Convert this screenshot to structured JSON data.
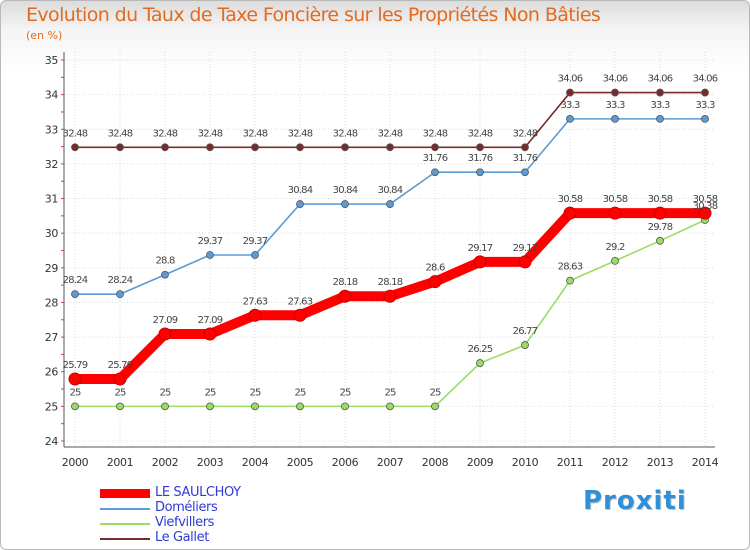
{
  "chart_data": {
    "type": "line",
    "title": "Evolution du Taux de Taxe Foncière sur les Propriétés Non Bâties",
    "subtitle": "(en %)",
    "x": [
      "2000",
      "2001",
      "2002",
      "2003",
      "2004",
      "2005",
      "2006",
      "2007",
      "2008",
      "2009",
      "2010",
      "2011",
      "2012",
      "2013",
      "2014"
    ],
    "ylim": [
      24,
      35
    ],
    "yticks": [
      "24",
      "25",
      "26",
      "27",
      "28",
      "29",
      "30",
      "31",
      "32",
      "33",
      "34",
      "35"
    ],
    "grid": true,
    "legend_position": "bottom-left",
    "series": [
      {
        "name": "LE SAULCHOY",
        "color": "#ff0000",
        "values": [
          25.79,
          25.79,
          27.09,
          27.09,
          27.63,
          27.63,
          28.18,
          28.18,
          28.6,
          29.17,
          29.17,
          30.58,
          30.58,
          30.58,
          30.58
        ],
        "labels": [
          "25.79",
          "25.79",
          "27.09",
          "27.09",
          "27.63",
          "27.63",
          "28.18",
          "28.18",
          "28.6",
          "29.17",
          "29.17",
          "30.58",
          "30.58",
          "30.58",
          "30.58"
        ]
      },
      {
        "name": "Doméliers",
        "color": "#5b9bd5",
        "values": [
          28.24,
          28.24,
          28.8,
          29.37,
          29.37,
          30.84,
          30.84,
          30.84,
          31.76,
          31.76,
          31.76,
          33.3,
          33.3,
          33.3,
          33.3
        ],
        "labels": [
          "28.24",
          "28.24",
          "28.8",
          "29.37",
          "29.37",
          "30.84",
          "30.84",
          "30.84",
          "31.76",
          "31.76",
          "31.76",
          "33.3",
          "33.3",
          "33.3",
          "33.3"
        ]
      },
      {
        "name": "Viefvillers",
        "color": "#99dd66",
        "values": [
          25,
          25,
          25,
          25,
          25,
          25,
          25,
          25,
          25,
          26.25,
          26.77,
          28.63,
          29.2,
          29.78,
          30.38
        ],
        "labels": [
          "25",
          "25",
          "25",
          "25",
          "25",
          "25",
          "25",
          "25",
          "25",
          "26.25",
          "26.77",
          "28.63",
          "29.2",
          "29.78",
          "30.38"
        ]
      },
      {
        "name": "Le Gallet",
        "color": "#7a2a2a",
        "values": [
          32.48,
          32.48,
          32.48,
          32.48,
          32.48,
          32.48,
          32.48,
          32.48,
          32.48,
          32.48,
          32.48,
          34.06,
          34.06,
          34.06,
          34.06
        ],
        "labels": [
          "32.48",
          "32.48",
          "32.48",
          "32.48",
          "32.48",
          "32.48",
          "32.48",
          "32.48",
          "32.48",
          "32.48",
          "32.48",
          "34.06",
          "34.06",
          "34.06",
          "34.06"
        ]
      }
    ]
  },
  "logo": {
    "text": "Proxiti"
  }
}
